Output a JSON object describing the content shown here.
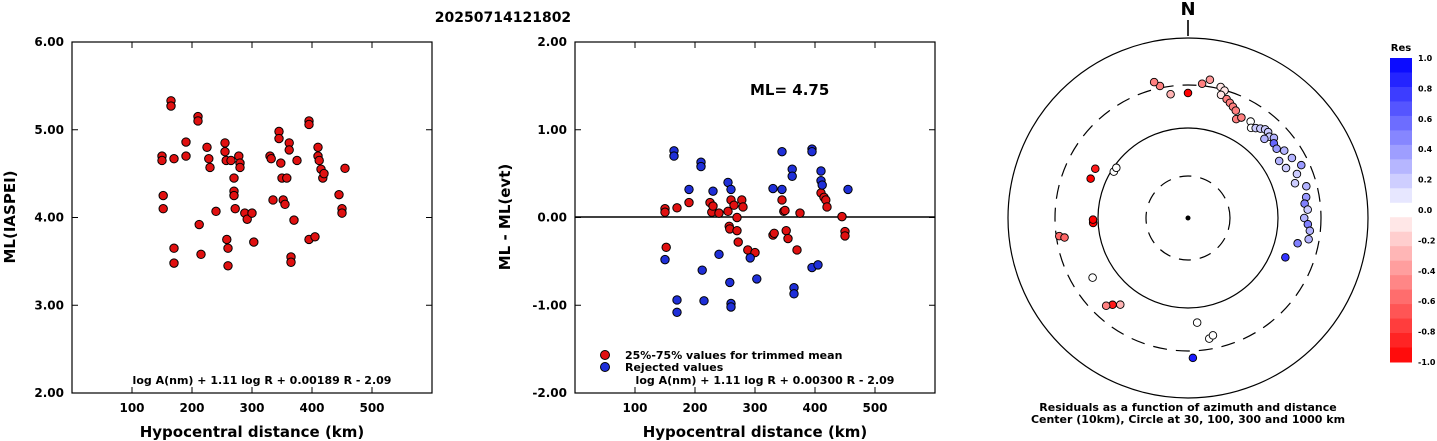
{
  "title": "20250714121802",
  "colors": {
    "red": "#e01010",
    "blue": "#1f2fd8",
    "axis": "#000000"
  },
  "chart_data": [
    {
      "type": "scatter",
      "xlabel": "Hypocentral distance (km)",
      "ylabel": "ML(IASPEI)",
      "xlim": [
        0,
        600
      ],
      "ylim": [
        2.0,
        6.0
      ],
      "xticks": [
        {
          "v": 100,
          "label": "100"
        },
        {
          "v": 200,
          "label": "200"
        },
        {
          "v": 300,
          "label": "300"
        },
        {
          "v": 400,
          "label": "400"
        },
        {
          "v": 500,
          "label": "500"
        }
      ],
      "yticks": [
        {
          "v": 2,
          "label": "2.00"
        },
        {
          "v": 3,
          "label": "3.00"
        },
        {
          "v": 4,
          "label": "4.00"
        },
        {
          "v": 5,
          "label": "5.00"
        },
        {
          "v": 6,
          "label": "6.00"
        }
      ],
      "formula": "log A(nm) + 1.11 log R + 0.00189 R - 2.09",
      "points": [
        [
          150,
          4.7
        ],
        [
          150,
          4.65
        ],
        [
          152,
          4.25
        ],
        [
          152,
          4.1
        ],
        [
          165,
          5.33
        ],
        [
          165,
          5.27
        ],
        [
          170,
          4.67
        ],
        [
          170,
          3.65
        ],
        [
          170,
          3.48
        ],
        [
          190,
          4.86
        ],
        [
          190,
          4.7
        ],
        [
          210,
          5.15
        ],
        [
          210,
          5.1
        ],
        [
          212,
          3.92
        ],
        [
          215,
          3.58
        ],
        [
          225,
          4.8
        ],
        [
          228,
          4.67
        ],
        [
          230,
          4.57
        ],
        [
          240,
          4.07
        ],
        [
          255,
          4.85
        ],
        [
          255,
          4.75
        ],
        [
          257,
          4.65
        ],
        [
          258,
          3.75
        ],
        [
          260,
          3.65
        ],
        [
          260,
          3.45
        ],
        [
          265,
          4.65
        ],
        [
          270,
          4.45
        ],
        [
          270,
          4.3
        ],
        [
          270,
          4.25
        ],
        [
          272,
          4.1
        ],
        [
          278,
          4.7
        ],
        [
          280,
          4.62
        ],
        [
          280,
          4.57
        ],
        [
          288,
          4.05
        ],
        [
          292,
          3.98
        ],
        [
          300,
          4.05
        ],
        [
          303,
          3.72
        ],
        [
          330,
          4.7
        ],
        [
          332,
          4.67
        ],
        [
          335,
          4.2
        ],
        [
          345,
          4.98
        ],
        [
          345,
          4.9
        ],
        [
          348,
          4.62
        ],
        [
          350,
          4.45
        ],
        [
          352,
          4.2
        ],
        [
          355,
          4.15
        ],
        [
          358,
          4.45
        ],
        [
          362,
          4.85
        ],
        [
          362,
          4.77
        ],
        [
          365,
          3.55
        ],
        [
          365,
          3.49
        ],
        [
          370,
          3.97
        ],
        [
          375,
          4.65
        ],
        [
          395,
          5.1
        ],
        [
          395,
          5.06
        ],
        [
          395,
          3.75
        ],
        [
          405,
          3.78
        ],
        [
          410,
          4.8
        ],
        [
          410,
          4.7
        ],
        [
          412,
          4.65
        ],
        [
          415,
          4.55
        ],
        [
          418,
          4.45
        ],
        [
          420,
          4.5
        ],
        [
          445,
          4.26
        ],
        [
          450,
          4.1
        ],
        [
          450,
          4.05
        ],
        [
          455,
          4.56
        ]
      ]
    },
    {
      "type": "scatter",
      "xlabel": "Hypocentral distance (km)",
      "ylabel": "ML - ML(evt)",
      "xlim": [
        0,
        600
      ],
      "ylim": [
        -2.0,
        2.0
      ],
      "xticks": [
        {
          "v": 100,
          "label": "100"
        },
        {
          "v": 200,
          "label": "200"
        },
        {
          "v": 300,
          "label": "300"
        },
        {
          "v": 400,
          "label": "400"
        },
        {
          "v": 500,
          "label": "500"
        }
      ],
      "yticks": [
        {
          "v": -2,
          "label": "-2.00"
        },
        {
          "v": -1,
          "label": "-1.00"
        },
        {
          "v": 0,
          "label": "0.00"
        },
        {
          "v": 1,
          "label": "1.00"
        },
        {
          "v": 2,
          "label": "2.00"
        }
      ],
      "annotation": "ML= 4.75",
      "formula": "log A(nm) + 1.11 log R + 0.00300 R - 2.09",
      "legend": [
        {
          "label": "25%-75% values for trimmed mean",
          "color": "red"
        },
        {
          "label": "Rejected values",
          "color": "blue"
        }
      ],
      "series": [
        {
          "name": "25%-75% values for trimmed mean",
          "color": "red",
          "points": [
            [
              150,
              0.1
            ],
            [
              150,
              0.06
            ],
            [
              152,
              -0.34
            ],
            [
              170,
              0.11
            ],
            [
              190,
              0.17
            ],
            [
              225,
              0.17
            ],
            [
              228,
              0.06
            ],
            [
              230,
              0.13
            ],
            [
              240,
              0.05
            ],
            [
              255,
              0.07
            ],
            [
              257,
              -0.1
            ],
            [
              258,
              -0.13
            ],
            [
              260,
              0.2
            ],
            [
              265,
              0.14
            ],
            [
              270,
              0.0
            ],
            [
              270,
              -0.15
            ],
            [
              272,
              -0.28
            ],
            [
              278,
              0.2
            ],
            [
              280,
              0.12
            ],
            [
              288,
              -0.37
            ],
            [
              300,
              -0.4
            ],
            [
              330,
              -0.2
            ],
            [
              332,
              -0.18
            ],
            [
              345,
              0.2
            ],
            [
              348,
              0.07
            ],
            [
              350,
              0.08
            ],
            [
              352,
              -0.15
            ],
            [
              355,
              -0.24
            ],
            [
              370,
              -0.37
            ],
            [
              375,
              0.05
            ],
            [
              410,
              0.28
            ],
            [
              415,
              0.23
            ],
            [
              418,
              0.2
            ],
            [
              420,
              0.12
            ],
            [
              445,
              0.01
            ],
            [
              450,
              -0.16
            ],
            [
              450,
              -0.21
            ]
          ]
        },
        {
          "name": "Rejected values",
          "color": "blue",
          "points": [
            [
              150,
              -0.48
            ],
            [
              165,
              0.76
            ],
            [
              165,
              0.7
            ],
            [
              170,
              -0.94
            ],
            [
              170,
              -1.08
            ],
            [
              190,
              0.32
            ],
            [
              210,
              0.63
            ],
            [
              210,
              0.58
            ],
            [
              212,
              -0.6
            ],
            [
              215,
              -0.95
            ],
            [
              230,
              0.3
            ],
            [
              240,
              -0.42
            ],
            [
              255,
              0.4
            ],
            [
              258,
              -0.74
            ],
            [
              260,
              0.32
            ],
            [
              260,
              -0.98
            ],
            [
              260,
              -1.02
            ],
            [
              292,
              -0.46
            ],
            [
              303,
              -0.7
            ],
            [
              330,
              0.33
            ],
            [
              345,
              0.75
            ],
            [
              345,
              0.32
            ],
            [
              362,
              0.55
            ],
            [
              362,
              0.47
            ],
            [
              365,
              -0.8
            ],
            [
              365,
              -0.87
            ],
            [
              395,
              0.78
            ],
            [
              395,
              0.75
            ],
            [
              395,
              -0.57
            ],
            [
              405,
              -0.54
            ],
            [
              410,
              0.53
            ],
            [
              410,
              0.42
            ],
            [
              412,
              0.37
            ],
            [
              455,
              0.32
            ]
          ]
        }
      ]
    },
    {
      "type": "polar-scatter",
      "north_label": "N",
      "caption_line1": "Residuals as a function of azimuth and distance",
      "caption_line2": "Center (10km), Circle at 30, 100, 300 and 1000 km",
      "colorbar": {
        "title": "Res",
        "ticks": [
          {
            "v": 1.0,
            "label": "1.0"
          },
          {
            "v": 0.8,
            "label": "0.8"
          },
          {
            "v": 0.6,
            "label": "0.6"
          },
          {
            "v": 0.4,
            "label": "0.4"
          },
          {
            "v": 0.2,
            "label": "0.2"
          },
          {
            "v": 0.0,
            "label": "0.0"
          },
          {
            "v": -0.2,
            "label": "-0.2"
          },
          {
            "v": -0.4,
            "label": "-0.4"
          },
          {
            "v": -0.6,
            "label": "-0.6"
          },
          {
            "v": -0.8,
            "label": "-0.8"
          },
          {
            "v": -1.0,
            "label": "-1.0"
          }
        ]
      },
      "points": [
        {
          "az": 348,
          "dist": 540,
          "res": -0.5
        },
        {
          "az": 346,
          "dist": 560,
          "res": -0.5
        },
        {
          "az": 352,
          "dist": 500,
          "res": -0.3
        },
        {
          "az": 6,
          "dist": 540,
          "res": -0.5
        },
        {
          "az": 9,
          "dist": 560,
          "res": -0.4
        },
        {
          "az": 0,
          "dist": 500,
          "res": -1.0
        },
        {
          "az": 14,
          "dist": 540,
          "res": -0.1
        },
        {
          "az": 16,
          "dist": 530,
          "res": -0.1
        },
        {
          "az": 15,
          "dist": 510,
          "res": -0.1
        },
        {
          "az": 18,
          "dist": 500,
          "res": -0.5
        },
        {
          "az": 20,
          "dist": 490,
          "res": -0.5
        },
        {
          "az": 22,
          "dist": 480,
          "res": -0.5
        },
        {
          "az": 24,
          "dist": 470,
          "res": -0.5
        },
        {
          "az": 26,
          "dist": 440,
          "res": -0.5
        },
        {
          "az": 28,
          "dist": 455,
          "res": -0.5
        },
        {
          "az": 33,
          "dist": 460,
          "res": 0.0
        },
        {
          "az": 35,
          "dist": 440,
          "res": 0.0
        },
        {
          "az": 37,
          "dist": 450,
          "res": 0.2
        },
        {
          "az": 39,
          "dist": 460,
          "res": 0.2
        },
        {
          "az": 41,
          "dist": 470,
          "res": 0.2
        },
        {
          "az": 43,
          "dist": 470,
          "res": 0.2
        },
        {
          "az": 45,
          "dist": 460,
          "res": 0.2
        },
        {
          "az": 47,
          "dist": 470,
          "res": 0.3
        },
        {
          "az": 44,
          "dist": 440,
          "res": 0.3
        },
        {
          "az": 49,
          "dist": 455,
          "res": 0.6
        },
        {
          "az": 52,
          "dist": 450,
          "res": 0.4
        },
        {
          "az": 55,
          "dist": 470,
          "res": 0.3
        },
        {
          "az": 58,
          "dist": 430,
          "res": 0.3
        },
        {
          "az": 60,
          "dist": 480,
          "res": 0.3
        },
        {
          "az": 63,
          "dist": 440,
          "res": 0.2
        },
        {
          "az": 65,
          "dist": 500,
          "res": 0.4
        },
        {
          "az": 68,
          "dist": 470,
          "res": 0.2
        },
        {
          "az": 72,
          "dist": 450,
          "res": 0.2
        },
        {
          "az": 75,
          "dist": 490,
          "res": 0.3
        },
        {
          "az": 80,
          "dist": 480,
          "res": 0.4
        },
        {
          "az": 83,
          "dist": 470,
          "res": 0.5
        },
        {
          "az": 86,
          "dist": 480,
          "res": 0.2
        },
        {
          "az": 90,
          "dist": 465,
          "res": 0.3
        },
        {
          "az": 93,
          "dist": 480,
          "res": 0.5
        },
        {
          "az": 96,
          "dist": 490,
          "res": 0.3
        },
        {
          "az": 100,
          "dist": 490,
          "res": 0.3
        },
        {
          "az": 103,
          "dist": 450,
          "res": 0.5
        },
        {
          "az": 112,
          "dist": 420,
          "res": 0.8
        },
        {
          "az": 175,
          "dist": 420,
          "res": 0.0
        },
        {
          "az": 170,
          "dist": 490,
          "res": 0.0
        },
        {
          "az": 168,
          "dist": 480,
          "res": 0.0
        },
        {
          "az": 178,
          "dist": 560,
          "res": 0.9
        },
        {
          "az": 218,
          "dist": 440,
          "res": -0.3
        },
        {
          "az": 221,
          "dist": 460,
          "res": -0.9
        },
        {
          "az": 223,
          "dist": 480,
          "res": -0.5
        },
        {
          "az": 238,
          "dist": 450,
          "res": 0.0
        },
        {
          "az": 267,
          "dist": 380,
          "res": -1.0
        },
        {
          "az": 269,
          "dist": 380,
          "res": -1.0
        },
        {
          "az": 262,
          "dist": 520,
          "res": -0.6
        },
        {
          "az": 261,
          "dist": 500,
          "res": -0.6
        },
        {
          "az": 292,
          "dist": 420,
          "res": -1.0
        },
        {
          "az": 298,
          "dist": 420,
          "res": -0.9
        },
        {
          "az": 302,
          "dist": 350,
          "res": 0.0
        },
        {
          "az": 305,
          "dist": 350,
          "res": 0.0
        }
      ]
    }
  ]
}
